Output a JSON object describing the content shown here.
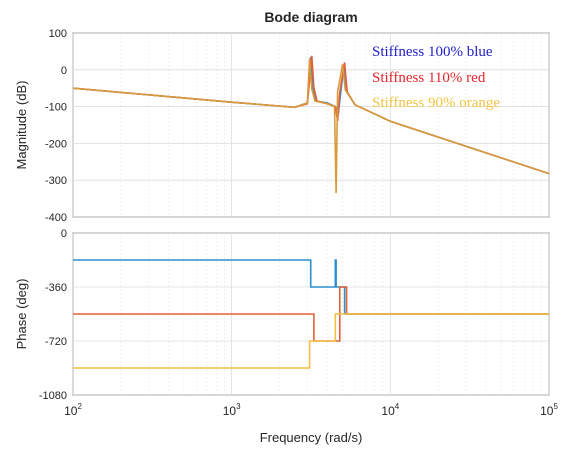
{
  "chart_data": [
    {
      "type": "line",
      "panel": "magnitude",
      "title": "Bode diagram",
      "xlabel": "",
      "ylabel": "Magnitude (dB)",
      "xscale": "log",
      "xlim": [
        100,
        100000
      ],
      "ylim": [
        -400,
        100
      ],
      "yticks": [
        100,
        0,
        -100,
        -200,
        -300,
        -400
      ],
      "grid": true,
      "legend_position": "top-right",
      "legend": [
        {
          "text": "Stiffness 100% blue",
          "color": "#1f1fc8"
        },
        {
          "text": "Stiffness 110% red",
          "color": "#e8262e"
        },
        {
          "text": "Stiffness 90% orange",
          "color": "#f4c542"
        }
      ],
      "series": [
        {
          "color": "#2a8fcf",
          "x": [
            100,
            1000,
            2500,
            3000,
            3150,
            3250,
            3400,
            4000,
            4500,
            4700,
            4900,
            5100,
            5300,
            6000,
            10000,
            100000
          ],
          "y": [
            -50,
            -88,
            -102,
            -90,
            35,
            -50,
            -85,
            -90,
            -100,
            -120,
            -50,
            10,
            -60,
            -95,
            -140,
            -282
          ]
        },
        {
          "color": "#e3603a",
          "x": [
            100,
            1000,
            2500,
            3000,
            3200,
            3300,
            3450,
            4000,
            4500,
            4650,
            4800,
            5150,
            5350,
            6000,
            10000,
            100000
          ],
          "y": [
            -50,
            -88,
            -102,
            -92,
            38,
            -48,
            -85,
            -92,
            -100,
            -140,
            -60,
            20,
            -60,
            -95,
            -140,
            -282
          ]
        },
        {
          "color": "#d99a3a",
          "x": [
            100,
            1000,
            2500,
            3000,
            3100,
            3200,
            3350,
            4000,
            4450,
            4550,
            4650,
            5000,
            5200,
            6000,
            10000,
            100000
          ],
          "y": [
            -50,
            -88,
            -102,
            -90,
            30,
            -52,
            -85,
            -92,
            -100,
            -335,
            -60,
            15,
            -55,
            -95,
            -140,
            -282
          ]
        }
      ]
    },
    {
      "type": "line",
      "panel": "phase",
      "title": "",
      "xlabel": "Frequency  (rad/s)",
      "ylabel": "Phase (deg)",
      "xscale": "log",
      "xlim": [
        100,
        100000
      ],
      "ylim": [
        -1080,
        0
      ],
      "yticks": [
        0,
        -360,
        -720,
        -1080
      ],
      "xticks": [
        {
          "base": "10",
          "exp": "2",
          "value": 100
        },
        {
          "base": "10",
          "exp": "3",
          "value": 1000
        },
        {
          "base": "10",
          "exp": "4",
          "value": 10000
        },
        {
          "base": "10",
          "exp": "5",
          "value": 100000
        }
      ],
      "grid": true,
      "series": [
        {
          "color": "#2a8fcf",
          "x": [
            100,
            3150,
            3150,
            4500,
            4500,
            4550,
            4550,
            5150,
            5150,
            100000
          ],
          "y": [
            -180,
            -180,
            -360,
            -360,
            -180,
            -180,
            -360,
            -360,
            -540,
            -540
          ]
        },
        {
          "color": "#e3603a",
          "x": [
            100,
            3300,
            3300,
            4800,
            4800,
            5300,
            5300,
            100000
          ],
          "y": [
            -540,
            -540,
            -720,
            -720,
            -360,
            -360,
            -540,
            -540
          ]
        },
        {
          "color": "#f2c043",
          "x": [
            100,
            3100,
            3100,
            4500,
            4500,
            5000,
            5000,
            100000
          ],
          "y": [
            -900,
            -900,
            -720,
            -720,
            -540,
            -540,
            -540,
            -540
          ]
        }
      ]
    }
  ]
}
